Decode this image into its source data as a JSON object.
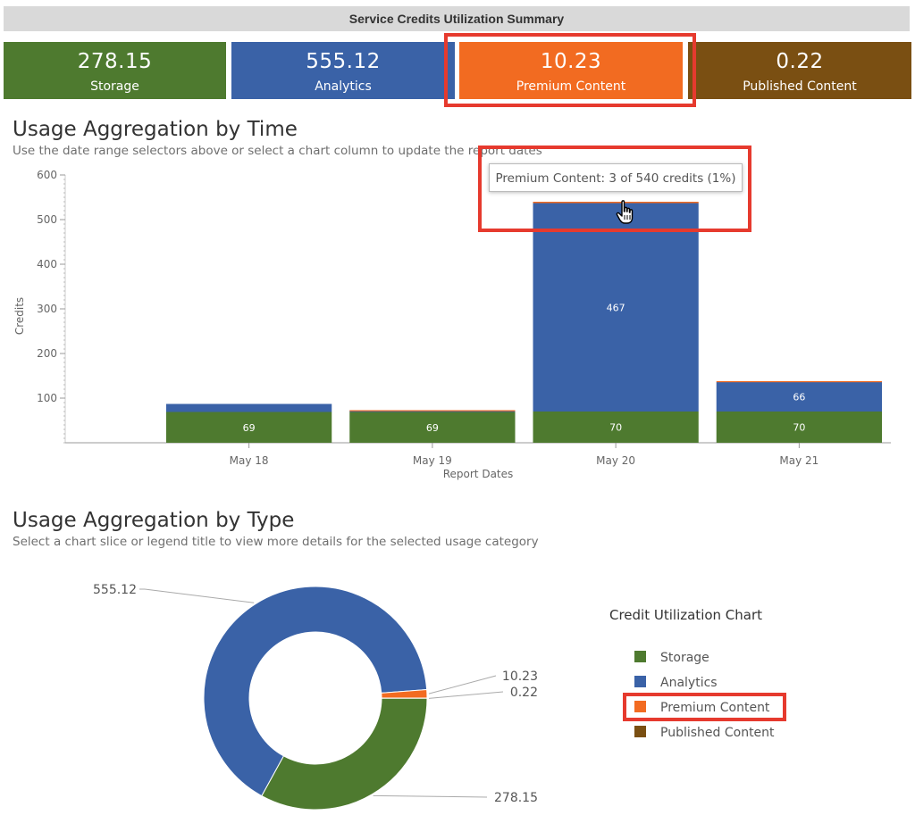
{
  "header": {
    "title": "Service Credits Utilization Summary"
  },
  "stats": [
    {
      "value": "278.15",
      "label": "Storage",
      "color": "#4e7a2f"
    },
    {
      "value": "555.12",
      "label": "Analytics",
      "color": "#3a62a7"
    },
    {
      "value": "10.23",
      "label": "Premium Content",
      "color": "#f26b21"
    },
    {
      "value": "0.22",
      "label": "Published Content",
      "color": "#7a4f12"
    }
  ],
  "time_section": {
    "title": "Usage Aggregation by Time",
    "subtitle": "Use the date range selectors above or select a chart column to update the report dates",
    "tooltip": "Premium Content: 3 of 540 credits (1%)"
  },
  "type_section": {
    "title": "Usage Aggregation by Type",
    "subtitle": "Select a chart slice or legend title to view more details for the selected usage category"
  },
  "legend": {
    "title": "Credit Utilization Chart",
    "items": [
      "Storage",
      "Analytics",
      "Premium Content",
      "Published Content"
    ]
  },
  "colors": {
    "storage": "#4e7a2f",
    "analytics": "#3a62a7",
    "premium": "#f26b21",
    "published": "#7a4f12",
    "highlight": "#e63a2e"
  },
  "chart_data": [
    {
      "type": "bar",
      "stacked": true,
      "categories": [
        "May 18",
        "May 19",
        "May 20",
        "May 21"
      ],
      "series": [
        {
          "name": "Storage",
          "values": [
            69,
            69,
            70,
            70
          ],
          "labels": [
            "69",
            "69",
            "70",
            "70"
          ]
        },
        {
          "name": "Analytics",
          "values": [
            18,
            3,
            467,
            66
          ],
          "labels": [
            "",
            "",
            "467",
            "66"
          ]
        },
        {
          "name": "Premium Content",
          "values": [
            0,
            1,
            3,
            2
          ],
          "labels": [
            "",
            "",
            "",
            ""
          ]
        },
        {
          "name": "Published Content",
          "values": [
            0,
            0,
            0,
            0
          ],
          "labels": [
            "",
            "",
            "",
            ""
          ]
        }
      ],
      "xlabel": "Report Dates",
      "ylabel": "Credits",
      "ylim": [
        0,
        600
      ],
      "yticks": [
        100,
        200,
        300,
        400,
        500,
        600
      ]
    },
    {
      "type": "pie",
      "donut": true,
      "labels": [
        "Storage",
        "Analytics",
        "Premium Content",
        "Published Content"
      ],
      "values": [
        278.15,
        555.12,
        10.23,
        0.22
      ],
      "value_labels": [
        "278.15",
        "555.12",
        "10.23",
        "0.22"
      ]
    }
  ]
}
